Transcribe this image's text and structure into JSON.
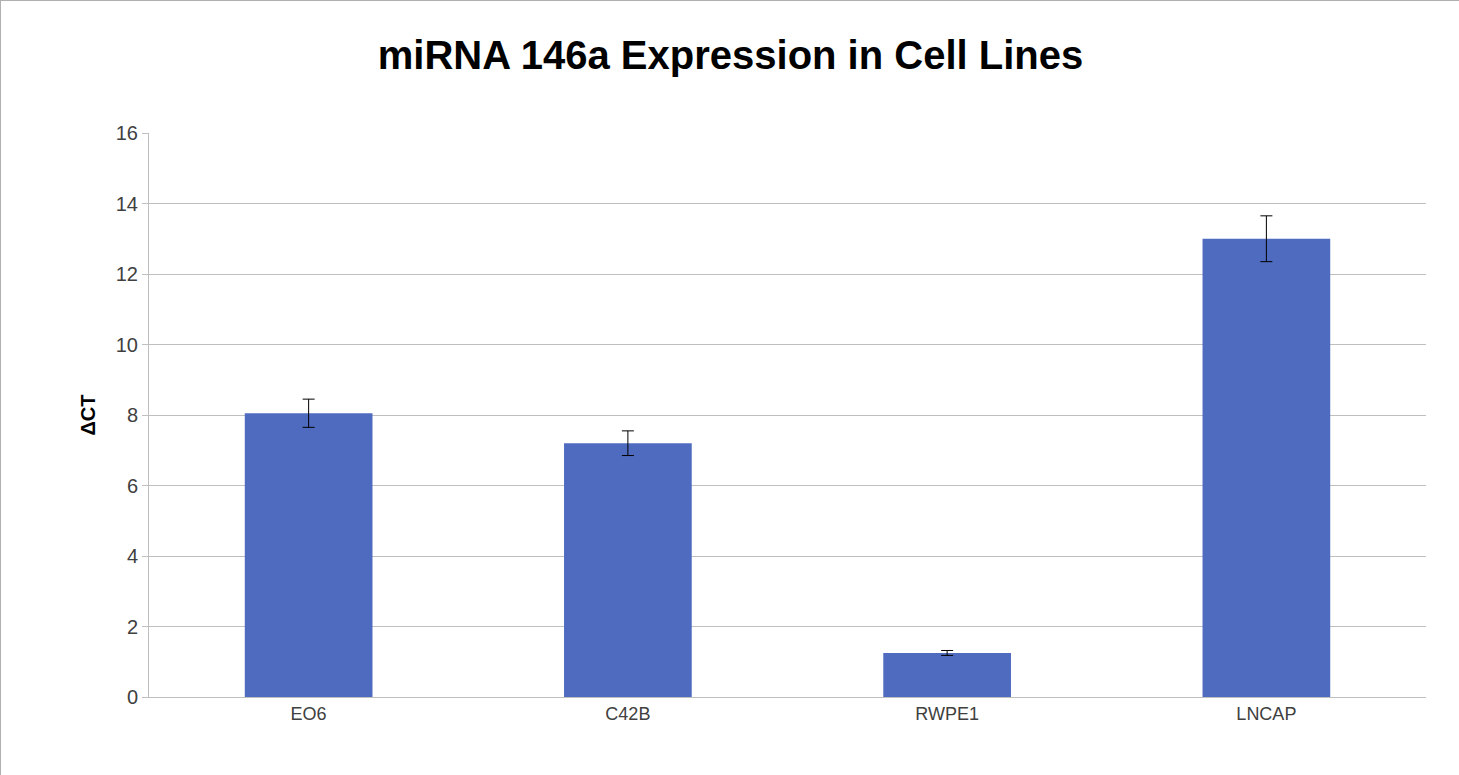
{
  "chart_data": {
    "type": "bar",
    "title": "miRNA 146a Expression in Cell Lines",
    "y_label": "ΔCT",
    "categories": [
      "EO6",
      "C42B",
      "RWPE1",
      "LNCAP"
    ],
    "values": [
      8.05,
      7.2,
      1.25,
      13.0
    ],
    "errors": [
      0.4,
      0.35,
      0.07,
      0.65
    ],
    "color": "#4f6bbf",
    "ylim": [
      0,
      16
    ],
    "yticks": [
      0,
      2,
      4,
      6,
      8,
      10,
      12,
      14,
      16
    ],
    "grid": true
  }
}
